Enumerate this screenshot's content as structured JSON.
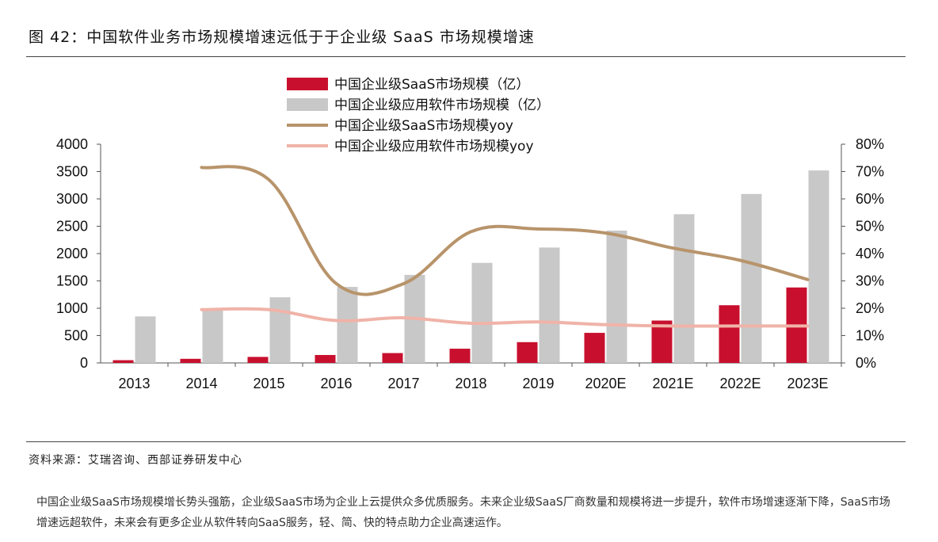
{
  "figure_title": "图 42：中国软件业务市场规模增速远低于于企业级 SaaS 市场规模增速",
  "source_note": "资料来源：艾瑞咨询、西部证券研发中心",
  "caption": "中国企业级SaaS市场规模增长势头强筋，企业级SaaS市场为企业上云提供众多优质服务。未来企业级SaaS厂商数量和规模将进一步提升，软件市场增速逐渐下降，SaaS市场增速远超软件，未来会有更多企业从软件转向SaaS服务，轻、简、快的特点助力企业高速运作。",
  "colors": {
    "saas_bar": "#c8102e",
    "software_bar": "#c8c8c8",
    "saas_line": "#b8946b",
    "software_line": "#f0b3a8"
  },
  "chart_data": {
    "type": "bar",
    "title": "",
    "categories": [
      "2013",
      "2014",
      "2015",
      "2016",
      "2017",
      "2018",
      "2019",
      "2020E",
      "2021E",
      "2022E",
      "2023E"
    ],
    "left_axis": {
      "range": [
        0,
        4000
      ],
      "ticks": [
        "0",
        "500",
        "1000",
        "1500",
        "2000",
        "2500",
        "3000",
        "3500",
        "4000"
      ]
    },
    "right_axis": {
      "range": [
        0,
        80
      ],
      "ticks": [
        "0%",
        "10%",
        "20%",
        "30%",
        "40%",
        "50%",
        "60%",
        "70%",
        "80%"
      ]
    },
    "series": [
      {
        "name": "中国企业级SaaS市场规模（亿）",
        "kind": "bar",
        "axis": "left",
        "values": [
          50,
          75,
          110,
          145,
          180,
          260,
          380,
          550,
          775,
          1055,
          1380
        ]
      },
      {
        "name": "中国企业级应用软件市场规模（亿）",
        "kind": "bar",
        "axis": "left",
        "values": [
          850,
          1000,
          1200,
          1390,
          1610,
          1830,
          2110,
          2420,
          2720,
          3090,
          3520
        ]
      },
      {
        "name": "中国企业级SaaS市场规模yoy",
        "kind": "line",
        "axis": "right",
        "values": [
          null,
          71.5,
          67,
          29,
          29,
          48,
          49,
          47.5,
          42,
          37.5,
          30.5
        ]
      },
      {
        "name": "中国企业级应用软件市场规模yoy",
        "kind": "line",
        "axis": "right",
        "values": [
          null,
          19.5,
          19.5,
          15.5,
          16.5,
          14.5,
          15,
          14,
          13.5,
          13.5,
          13.5
        ]
      }
    ],
    "legend_position": "top-center"
  }
}
